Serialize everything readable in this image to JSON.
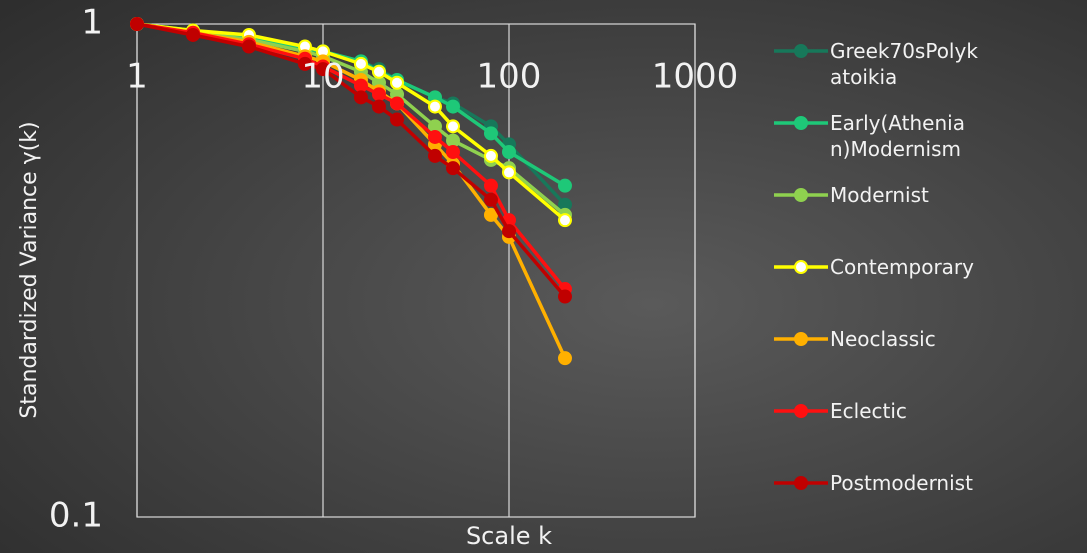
{
  "chart_data": {
    "type": "line",
    "x_label": "Scale k",
    "y_label": "Standardized Variance γ(k)",
    "log_x": true,
    "log_y": true,
    "grid": true,
    "xlim": [
      1,
      1000
    ],
    "ylim": [
      0.1,
      1
    ],
    "xticks": [
      1,
      10,
      100,
      1000
    ],
    "yticks": [
      0.1,
      1
    ],
    "legend": "right",
    "x": [
      1,
      2,
      4,
      8,
      10,
      16,
      20,
      25,
      40,
      50,
      80,
      100,
      200
    ],
    "series": [
      {
        "name": "Greek70sPolykatoikia",
        "color": "#17785a",
        "marker_fill": "#17785a",
        "values": [
          1,
          0.97,
          0.94,
          0.89,
          0.88,
          0.84,
          0.81,
          0.77,
          0.71,
          0.69,
          0.62,
          0.57,
          0.43
        ]
      },
      {
        "name": "Early(Athenian)Modernism",
        "color": "#1ec878",
        "marker_fill": "#1ec878",
        "values": [
          1,
          0.97,
          0.94,
          0.89,
          0.88,
          0.84,
          0.8,
          0.77,
          0.71,
          0.68,
          0.6,
          0.55,
          0.47
        ]
      },
      {
        "name": "Modernist",
        "color": "#8fd14f",
        "marker_fill": "#8fd14f",
        "values": [
          1,
          0.96,
          0.93,
          0.88,
          0.86,
          0.8,
          0.76,
          0.72,
          0.62,
          0.58,
          0.53,
          0.51,
          0.41
        ]
      },
      {
        "name": "Contemporary",
        "color": "#ffff00",
        "marker_fill": "#ffffff",
        "values": [
          1,
          0.97,
          0.95,
          0.9,
          0.88,
          0.83,
          0.8,
          0.76,
          0.68,
          0.62,
          0.54,
          0.5,
          0.4
        ]
      },
      {
        "name": "Neoclassic",
        "color": "#ffb000",
        "marker_fill": "#ffb000",
        "values": [
          1,
          0.96,
          0.92,
          0.86,
          0.84,
          0.77,
          0.73,
          0.69,
          0.57,
          0.52,
          0.41,
          0.37,
          0.21
        ]
      },
      {
        "name": "Eclectic",
        "color": "#ff1010",
        "marker_fill": "#ff1010",
        "values": [
          1,
          0.96,
          0.91,
          0.85,
          0.82,
          0.75,
          0.72,
          0.69,
          0.59,
          0.55,
          0.47,
          0.4,
          0.29
        ]
      },
      {
        "name": "Postmodernist",
        "color": "#c00000",
        "marker_fill": "#c00000",
        "values": [
          1,
          0.95,
          0.9,
          0.83,
          0.81,
          0.71,
          0.68,
          0.64,
          0.54,
          0.51,
          0.44,
          0.38,
          0.28
        ]
      }
    ]
  }
}
